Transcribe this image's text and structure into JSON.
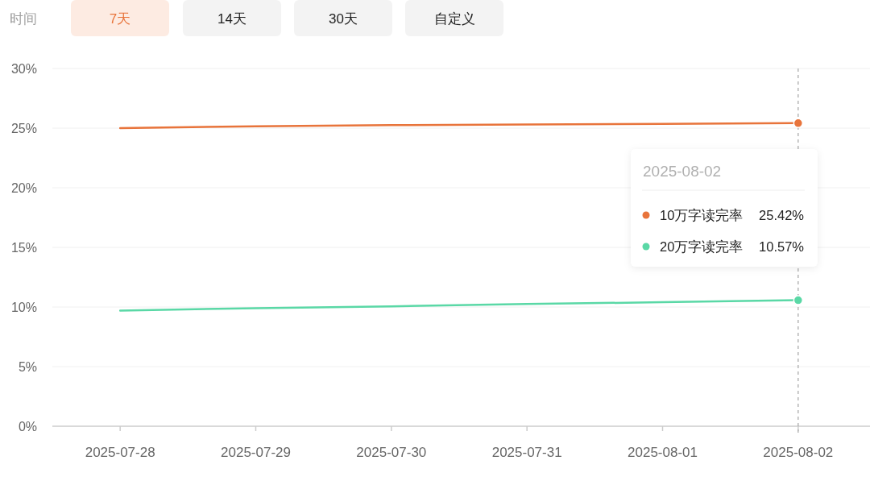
{
  "chart_data": {
    "type": "line",
    "categories": [
      "2025-07-28",
      "2025-07-29",
      "2025-07-30",
      "2025-07-31",
      "2025-08-01",
      "2025-08-02"
    ],
    "series": [
      {
        "name": "10万字读完率",
        "color": "#e8743b",
        "values": [
          25.0,
          25.15,
          25.25,
          25.3,
          25.35,
          25.42
        ]
      },
      {
        "name": "20万字读完率",
        "color": "#5ad8a6",
        "values": [
          9.7,
          9.9,
          10.05,
          10.25,
          10.4,
          10.57
        ]
      }
    ],
    "ylim": [
      0,
      30
    ],
    "yticks": [
      {
        "value": 0,
        "label": "0%"
      },
      {
        "value": 5,
        "label": "5%"
      },
      {
        "value": 10,
        "label": "10%"
      },
      {
        "value": 15,
        "label": "15%"
      },
      {
        "value": 20,
        "label": "20%"
      },
      {
        "value": 25,
        "label": "25%"
      },
      {
        "value": 30,
        "label": "30%"
      }
    ],
    "grid": "y",
    "legend": "right",
    "ref_lines": [
      {
        "axis": "x",
        "value": "2025-08-02",
        "label": "2025-08-02",
        "color": "#aaaaaa",
        "line_style": "dashed"
      }
    ],
    "annotations": [
      "时间",
      "7天",
      "14天",
      "30天",
      "自定义",
      "25.42%",
      "10.57%"
    ]
  }
}
